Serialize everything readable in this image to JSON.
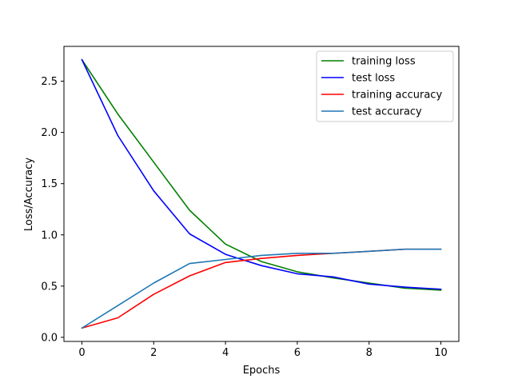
{
  "chart_data": {
    "type": "line",
    "title": "",
    "xlabel": "Epochs",
    "ylabel": "Loss/Accuracy",
    "xlim": [
      -0.5,
      10.5
    ],
    "ylim": [
      -0.04,
      2.84
    ],
    "xticks": [
      0,
      2,
      4,
      6,
      8,
      10
    ],
    "xtick_labels": [
      "0",
      "2",
      "4",
      "6",
      "8",
      "10"
    ],
    "yticks": [
      0.0,
      0.5,
      1.0,
      1.5,
      2.0,
      2.5
    ],
    "ytick_labels": [
      "0.0",
      "0.5",
      "1.0",
      "1.5",
      "2.0",
      "2.5"
    ],
    "grid": false,
    "legend_position": "top-right",
    "x": [
      0,
      1,
      2,
      3,
      4,
      5,
      6,
      7,
      8,
      9,
      10
    ],
    "series": [
      {
        "name": "training loss",
        "color": "#008000",
        "values": [
          2.71,
          2.18,
          1.71,
          1.24,
          0.91,
          0.74,
          0.64,
          0.58,
          0.53,
          0.48,
          0.46
        ]
      },
      {
        "name": "test loss",
        "color": "#0000ff",
        "values": [
          2.71,
          1.97,
          1.43,
          1.01,
          0.81,
          0.7,
          0.62,
          0.59,
          0.52,
          0.49,
          0.47
        ]
      },
      {
        "name": "training accuracy",
        "color": "#ff0000",
        "values": [
          0.09,
          0.19,
          0.42,
          0.6,
          0.73,
          0.77,
          0.8,
          0.82,
          0.84,
          0.86,
          0.86
        ]
      },
      {
        "name": "test accuracy",
        "color": "#1f77b4",
        "values": [
          0.09,
          0.31,
          0.53,
          0.72,
          0.76,
          0.8,
          0.82,
          0.82,
          0.84,
          0.86,
          0.86
        ]
      }
    ]
  }
}
